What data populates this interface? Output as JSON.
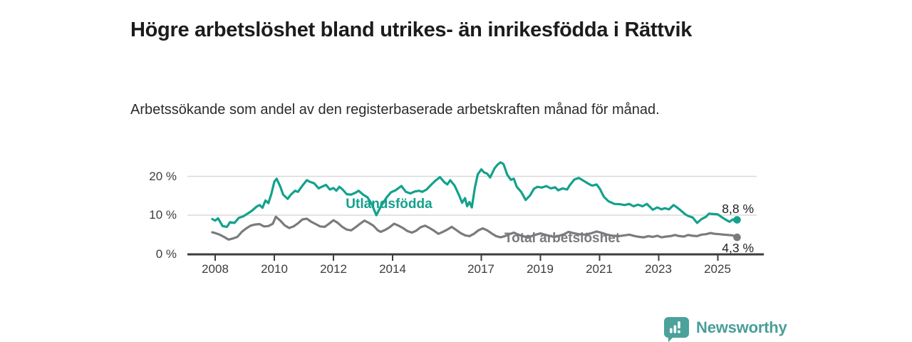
{
  "header": {
    "title": "Högre arbetslöshet bland utrikes- än inrikesfödda i Rättvik",
    "subtitle": "Arbetssökande som andel av den registerbaserade arbetskraften månad för månad."
  },
  "chart_data": {
    "type": "line",
    "title": "Högre arbetslöshet bland utrikes- än inrikesfödda i Rättvik",
    "subtitle": "Arbetssökande som andel av den registerbaserade arbetskraften månad för månad.",
    "xlabel": "",
    "ylabel": "",
    "unit": "%",
    "grid": "horizontal",
    "legend_position": "inline-labels",
    "ylim": [
      0,
      24
    ],
    "y_ticks": [
      0,
      10,
      20
    ],
    "y_tick_labels": [
      "0 %",
      "10 %",
      "20 %"
    ],
    "x_range": [
      2007.8,
      2026.5
    ],
    "x_ticks": [
      2008,
      2010,
      2012,
      2014,
      2017,
      2019,
      2021,
      2023,
      2025
    ],
    "x_tick_labels": [
      "2008",
      "2010",
      "2012",
      "2014",
      "2017",
      "2019",
      "2021",
      "2023",
      "2025"
    ],
    "series": [
      {
        "name": "Utlandsfödda",
        "color": "#14a18c",
        "end_label": "8,8 %",
        "end_value": 8.8,
        "points": [
          [
            2007.9,
            9.0
          ],
          [
            2008.0,
            8.6
          ],
          [
            2008.1,
            9.2
          ],
          [
            2008.25,
            7.2
          ],
          [
            2008.4,
            7.0
          ],
          [
            2008.5,
            8.2
          ],
          [
            2008.65,
            8.0
          ],
          [
            2008.8,
            9.3
          ],
          [
            2008.95,
            9.7
          ],
          [
            2009.1,
            10.4
          ],
          [
            2009.25,
            11.2
          ],
          [
            2009.4,
            12.2
          ],
          [
            2009.5,
            12.6
          ],
          [
            2009.6,
            11.9
          ],
          [
            2009.7,
            13.8
          ],
          [
            2009.8,
            13.1
          ],
          [
            2009.9,
            15.5
          ],
          [
            2010.0,
            18.6
          ],
          [
            2010.08,
            19.4
          ],
          [
            2010.2,
            17.4
          ],
          [
            2010.3,
            15.3
          ],
          [
            2010.45,
            14.2
          ],
          [
            2010.55,
            15.2
          ],
          [
            2010.7,
            16.3
          ],
          [
            2010.8,
            16.0
          ],
          [
            2010.95,
            17.6
          ],
          [
            2011.1,
            19.0
          ],
          [
            2011.2,
            18.6
          ],
          [
            2011.35,
            18.2
          ],
          [
            2011.5,
            16.9
          ],
          [
            2011.6,
            17.3
          ],
          [
            2011.75,
            17.8
          ],
          [
            2011.88,
            16.6
          ],
          [
            2012.0,
            17.0
          ],
          [
            2012.1,
            16.3
          ],
          [
            2012.2,
            17.3
          ],
          [
            2012.3,
            16.7
          ],
          [
            2012.45,
            15.4
          ],
          [
            2012.6,
            15.3
          ],
          [
            2012.75,
            15.8
          ],
          [
            2012.85,
            16.3
          ],
          [
            2013.0,
            15.3
          ],
          [
            2013.15,
            14.6
          ],
          [
            2013.3,
            12.8
          ],
          [
            2013.45,
            10.0
          ],
          [
            2013.6,
            12.2
          ],
          [
            2013.8,
            14.6
          ],
          [
            2013.95,
            15.9
          ],
          [
            2014.1,
            16.4
          ],
          [
            2014.3,
            17.5
          ],
          [
            2014.45,
            16.0
          ],
          [
            2014.6,
            15.6
          ],
          [
            2014.75,
            16.1
          ],
          [
            2014.9,
            16.3
          ],
          [
            2015.0,
            16.0
          ],
          [
            2015.15,
            16.6
          ],
          [
            2015.3,
            17.8
          ],
          [
            2015.45,
            18.9
          ],
          [
            2015.6,
            19.8
          ],
          [
            2015.75,
            18.5
          ],
          [
            2015.85,
            17.9
          ],
          [
            2015.95,
            19.0
          ],
          [
            2016.1,
            17.6
          ],
          [
            2016.25,
            15.1
          ],
          [
            2016.35,
            13.2
          ],
          [
            2016.45,
            14.4
          ],
          [
            2016.52,
            12.3
          ],
          [
            2016.6,
            13.4
          ],
          [
            2016.68,
            12.0
          ],
          [
            2016.78,
            17.0
          ],
          [
            2016.88,
            20.5
          ],
          [
            2017.0,
            21.8
          ],
          [
            2017.1,
            21.0
          ],
          [
            2017.2,
            20.7
          ],
          [
            2017.3,
            19.7
          ],
          [
            2017.45,
            22.1
          ],
          [
            2017.55,
            23.0
          ],
          [
            2017.65,
            23.6
          ],
          [
            2017.75,
            23.2
          ],
          [
            2017.88,
            20.4
          ],
          [
            2018.0,
            19.1
          ],
          [
            2018.1,
            19.4
          ],
          [
            2018.2,
            17.3
          ],
          [
            2018.35,
            16.0
          ],
          [
            2018.5,
            13.9
          ],
          [
            2018.65,
            15.1
          ],
          [
            2018.78,
            16.8
          ],
          [
            2018.9,
            17.3
          ],
          [
            2019.05,
            17.1
          ],
          [
            2019.2,
            17.5
          ],
          [
            2019.35,
            16.9
          ],
          [
            2019.5,
            17.2
          ],
          [
            2019.6,
            16.4
          ],
          [
            2019.75,
            16.9
          ],
          [
            2019.9,
            16.6
          ],
          [
            2020.0,
            17.8
          ],
          [
            2020.15,
            19.2
          ],
          [
            2020.3,
            19.6
          ],
          [
            2020.45,
            18.9
          ],
          [
            2020.6,
            18.2
          ],
          [
            2020.75,
            17.6
          ],
          [
            2020.9,
            17.9
          ],
          [
            2021.0,
            16.9
          ],
          [
            2021.15,
            14.7
          ],
          [
            2021.3,
            13.6
          ],
          [
            2021.5,
            12.9
          ],
          [
            2021.7,
            12.8
          ],
          [
            2021.85,
            12.6
          ],
          [
            2022.0,
            12.9
          ],
          [
            2022.15,
            12.3
          ],
          [
            2022.3,
            12.7
          ],
          [
            2022.45,
            12.3
          ],
          [
            2022.6,
            12.9
          ],
          [
            2022.8,
            11.4
          ],
          [
            2022.95,
            12.0
          ],
          [
            2023.1,
            11.5
          ],
          [
            2023.2,
            11.8
          ],
          [
            2023.35,
            11.5
          ],
          [
            2023.5,
            12.6
          ],
          [
            2023.62,
            12.0
          ],
          [
            2023.75,
            11.2
          ],
          [
            2023.9,
            10.2
          ],
          [
            2024.0,
            9.8
          ],
          [
            2024.15,
            9.4
          ],
          [
            2024.3,
            8.0
          ],
          [
            2024.45,
            9.0
          ],
          [
            2024.6,
            9.6
          ],
          [
            2024.7,
            10.4
          ],
          [
            2024.85,
            10.3
          ],
          [
            2025.0,
            10.2
          ],
          [
            2025.15,
            9.4
          ],
          [
            2025.3,
            8.7
          ],
          [
            2025.4,
            8.3
          ],
          [
            2025.5,
            8.9
          ],
          [
            2025.58,
            8.5
          ],
          [
            2025.65,
            8.8
          ]
        ]
      },
      {
        "name": "Total arbetslöshet",
        "color": "#7b7b7f",
        "end_label": "4,3 %",
        "end_value": 4.3,
        "points": [
          [
            2007.9,
            5.6
          ],
          [
            2008.0,
            5.4
          ],
          [
            2008.15,
            5.0
          ],
          [
            2008.3,
            4.4
          ],
          [
            2008.45,
            3.7
          ],
          [
            2008.6,
            4.0
          ],
          [
            2008.75,
            4.4
          ],
          [
            2008.9,
            5.7
          ],
          [
            2009.05,
            6.6
          ],
          [
            2009.2,
            7.3
          ],
          [
            2009.35,
            7.6
          ],
          [
            2009.5,
            7.7
          ],
          [
            2009.65,
            7.1
          ],
          [
            2009.8,
            7.2
          ],
          [
            2009.95,
            7.8
          ],
          [
            2010.05,
            9.6
          ],
          [
            2010.2,
            8.6
          ],
          [
            2010.35,
            7.4
          ],
          [
            2010.5,
            6.7
          ],
          [
            2010.65,
            7.1
          ],
          [
            2010.8,
            7.9
          ],
          [
            2010.95,
            8.9
          ],
          [
            2011.1,
            9.1
          ],
          [
            2011.25,
            8.3
          ],
          [
            2011.4,
            7.7
          ],
          [
            2011.55,
            7.1
          ],
          [
            2011.7,
            7.0
          ],
          [
            2011.85,
            7.8
          ],
          [
            2012.0,
            8.7
          ],
          [
            2012.15,
            8.0
          ],
          [
            2012.3,
            7.0
          ],
          [
            2012.45,
            6.3
          ],
          [
            2012.6,
            6.1
          ],
          [
            2012.75,
            6.9
          ],
          [
            2012.9,
            7.8
          ],
          [
            2013.05,
            8.6
          ],
          [
            2013.2,
            8.0
          ],
          [
            2013.35,
            7.3
          ],
          [
            2013.5,
            6.1
          ],
          [
            2013.6,
            5.7
          ],
          [
            2013.75,
            6.2
          ],
          [
            2013.9,
            6.9
          ],
          [
            2014.05,
            7.8
          ],
          [
            2014.2,
            7.3
          ],
          [
            2014.35,
            6.7
          ],
          [
            2014.5,
            5.9
          ],
          [
            2014.65,
            5.5
          ],
          [
            2014.8,
            6.0
          ],
          [
            2014.95,
            6.9
          ],
          [
            2015.1,
            7.3
          ],
          [
            2015.25,
            6.7
          ],
          [
            2015.4,
            6.0
          ],
          [
            2015.55,
            5.2
          ],
          [
            2015.7,
            5.7
          ],
          [
            2015.85,
            6.3
          ],
          [
            2016.0,
            7.0
          ],
          [
            2016.15,
            6.2
          ],
          [
            2016.3,
            5.4
          ],
          [
            2016.45,
            4.8
          ],
          [
            2016.6,
            4.6
          ],
          [
            2016.75,
            5.2
          ],
          [
            2016.9,
            6.1
          ],
          [
            2017.05,
            6.6
          ],
          [
            2017.2,
            6.1
          ],
          [
            2017.35,
            5.3
          ],
          [
            2017.5,
            4.6
          ],
          [
            2017.65,
            4.3
          ],
          [
            2017.8,
            4.6
          ],
          [
            2017.95,
            5.1
          ],
          [
            2018.1,
            5.5
          ],
          [
            2018.25,
            5.0
          ],
          [
            2018.4,
            4.6
          ],
          [
            2018.55,
            4.3
          ],
          [
            2018.7,
            4.6
          ],
          [
            2018.85,
            5.0
          ],
          [
            2019.0,
            5.3
          ],
          [
            2019.15,
            5.0
          ],
          [
            2019.3,
            4.7
          ],
          [
            2019.45,
            4.4
          ],
          [
            2019.6,
            4.6
          ],
          [
            2019.8,
            5.1
          ],
          [
            2019.95,
            5.7
          ],
          [
            2020.1,
            5.4
          ],
          [
            2020.3,
            5.1
          ],
          [
            2020.5,
            5.0
          ],
          [
            2020.7,
            5.3
          ],
          [
            2020.9,
            5.8
          ],
          [
            2021.05,
            5.5
          ],
          [
            2021.25,
            5.0
          ],
          [
            2021.45,
            4.7
          ],
          [
            2021.65,
            4.6
          ],
          [
            2021.85,
            4.8
          ],
          [
            2022.0,
            5.0
          ],
          [
            2022.2,
            4.6
          ],
          [
            2022.35,
            4.4
          ],
          [
            2022.5,
            4.3
          ],
          [
            2022.65,
            4.6
          ],
          [
            2022.8,
            4.4
          ],
          [
            2022.95,
            4.7
          ],
          [
            2023.1,
            4.3
          ],
          [
            2023.25,
            4.5
          ],
          [
            2023.4,
            4.6
          ],
          [
            2023.55,
            4.9
          ],
          [
            2023.7,
            4.6
          ],
          [
            2023.85,
            4.5
          ],
          [
            2024.0,
            4.9
          ],
          [
            2024.15,
            4.7
          ],
          [
            2024.3,
            4.6
          ],
          [
            2024.45,
            5.0
          ],
          [
            2024.6,
            5.1
          ],
          [
            2024.75,
            5.4
          ],
          [
            2024.9,
            5.2
          ],
          [
            2025.05,
            5.1
          ],
          [
            2025.2,
            5.0
          ],
          [
            2025.35,
            4.9
          ],
          [
            2025.5,
            4.8
          ],
          [
            2025.65,
            4.3
          ]
        ]
      }
    ]
  },
  "footer": {
    "brand": "Newsworthy",
    "logo_color": "#4aa29b"
  }
}
